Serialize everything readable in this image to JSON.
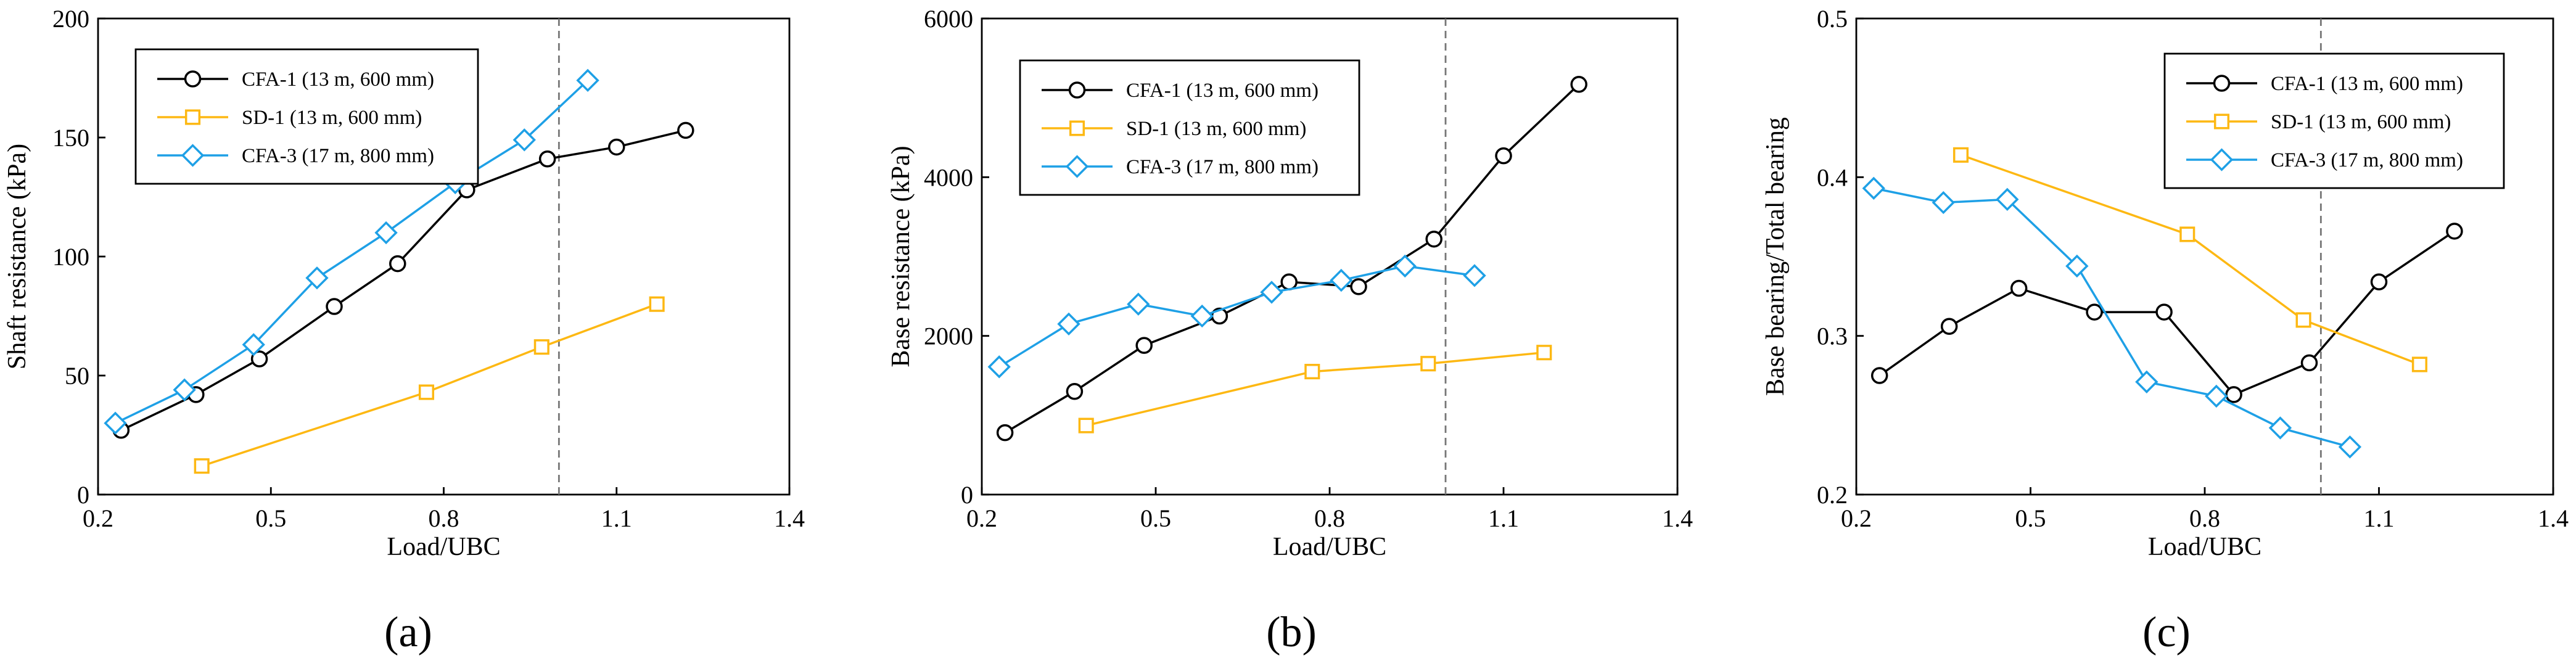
{
  "colors": {
    "CFA-1 (13 m, 600 mm)": "#000000",
    "SD-1 (13 m, 600 mm)": "#FDB813",
    "CFA-3 (17 m, 800 mm)": "#1EA0E6"
  },
  "chart_data": [
    {
      "type": "line",
      "panel_label": "(a)",
      "xlabel": "Load/UBC",
      "ylabel": "Shaft resistance (kPa)",
      "xlim": [
        0.2,
        1.4
      ],
      "ylim": [
        0,
        200
      ],
      "xticks": [
        0.2,
        0.5,
        0.8,
        1.1,
        1.4
      ],
      "xtick_labels": [
        "0.2",
        "0.5",
        "0.8",
        "1.1",
        "1.4"
      ],
      "yticks": [
        0,
        50,
        100,
        150,
        200
      ],
      "ytick_labels": [
        "0",
        "50",
        "100",
        "150",
        "200"
      ],
      "reference_x": 1.0,
      "legend_position": "top-left",
      "series": [
        {
          "name": "CFA-1 (13 m, 600 mm)",
          "marker": "circle",
          "x": [
            0.24,
            0.37,
            0.48,
            0.61,
            0.72,
            0.84,
            0.98,
            1.1,
            1.22
          ],
          "y": [
            27,
            42,
            57,
            79,
            97,
            128,
            141,
            146,
            153
          ]
        },
        {
          "name": "SD-1 (13 m, 600 mm)",
          "marker": "square",
          "x": [
            0.38,
            0.77,
            0.97,
            1.17
          ],
          "y": [
            12,
            43,
            62,
            80
          ]
        },
        {
          "name": "CFA-3 (17 m, 800 mm)",
          "marker": "diamond",
          "x": [
            0.23,
            0.35,
            0.47,
            0.58,
            0.7,
            0.82,
            0.94,
            1.05
          ],
          "y": [
            30,
            44,
            63,
            91,
            110,
            131,
            149,
            174
          ]
        }
      ]
    },
    {
      "type": "line",
      "panel_label": "(b)",
      "xlabel": "Load/UBC",
      "ylabel": "Base resistance (kPa)",
      "xlim": [
        0.2,
        1.4
      ],
      "ylim": [
        0,
        6000
      ],
      "xticks": [
        0.2,
        0.5,
        0.8,
        1.1,
        1.4
      ],
      "xtick_labels": [
        "0.2",
        "0.5",
        "0.8",
        "1.1",
        "1.4"
      ],
      "yticks": [
        0,
        2000,
        4000,
        6000
      ],
      "ytick_labels": [
        "0",
        "2000",
        "4000",
        "6000"
      ],
      "reference_x": 1.0,
      "legend_position": "top-left",
      "series": [
        {
          "name": "CFA-1 (13 m, 600 mm)",
          "marker": "circle",
          "x": [
            0.24,
            0.36,
            0.48,
            0.61,
            0.73,
            0.85,
            0.98,
            1.1,
            1.23
          ],
          "y": [
            780,
            1300,
            1880,
            2250,
            2680,
            2620,
            3220,
            4270,
            5170
          ]
        },
        {
          "name": "SD-1 (13 m, 600 mm)",
          "marker": "square",
          "x": [
            0.38,
            0.77,
            0.97,
            1.17
          ],
          "y": [
            870,
            1550,
            1650,
            1790
          ]
        },
        {
          "name": "CFA-3 (17 m, 800 mm)",
          "marker": "diamond",
          "x": [
            0.23,
            0.35,
            0.47,
            0.58,
            0.7,
            0.82,
            0.93,
            1.05
          ],
          "y": [
            1610,
            2150,
            2400,
            2250,
            2550,
            2700,
            2880,
            2760
          ]
        }
      ]
    },
    {
      "type": "line",
      "panel_label": "(c)",
      "xlabel": "Load/UBC",
      "ylabel": "Base bearing/Total bearing",
      "xlim": [
        0.2,
        1.4
      ],
      "ylim": [
        0.2,
        0.5
      ],
      "xticks": [
        0.2,
        0.5,
        0.8,
        1.1,
        1.4
      ],
      "xtick_labels": [
        "0.2",
        "0.5",
        "0.8",
        "1.1",
        "1.4"
      ],
      "yticks": [
        0.2,
        0.3,
        0.4,
        0.5
      ],
      "ytick_labels": [
        "0.2",
        "0.3",
        "0.4",
        "0.5"
      ],
      "reference_x": 1.0,
      "legend_position": "top-right",
      "series": [
        {
          "name": "CFA-1 (13 m, 600 mm)",
          "marker": "circle",
          "x": [
            0.24,
            0.36,
            0.48,
            0.61,
            0.73,
            0.85,
            0.98,
            1.1,
            1.23
          ],
          "y": [
            0.275,
            0.306,
            0.33,
            0.315,
            0.315,
            0.263,
            0.283,
            0.334,
            0.366
          ]
        },
        {
          "name": "SD-1 (13 m, 600 mm)",
          "marker": "square",
          "x": [
            0.38,
            0.77,
            0.97,
            1.17
          ],
          "y": [
            0.414,
            0.364,
            0.31,
            0.282
          ]
        },
        {
          "name": "CFA-3 (17 m, 800 mm)",
          "marker": "diamond",
          "x": [
            0.23,
            0.35,
            0.46,
            0.58,
            0.7,
            0.82,
            0.93,
            1.05
          ],
          "y": [
            0.393,
            0.384,
            0.386,
            0.344,
            0.271,
            0.262,
            0.242,
            0.23
          ]
        }
      ]
    }
  ]
}
